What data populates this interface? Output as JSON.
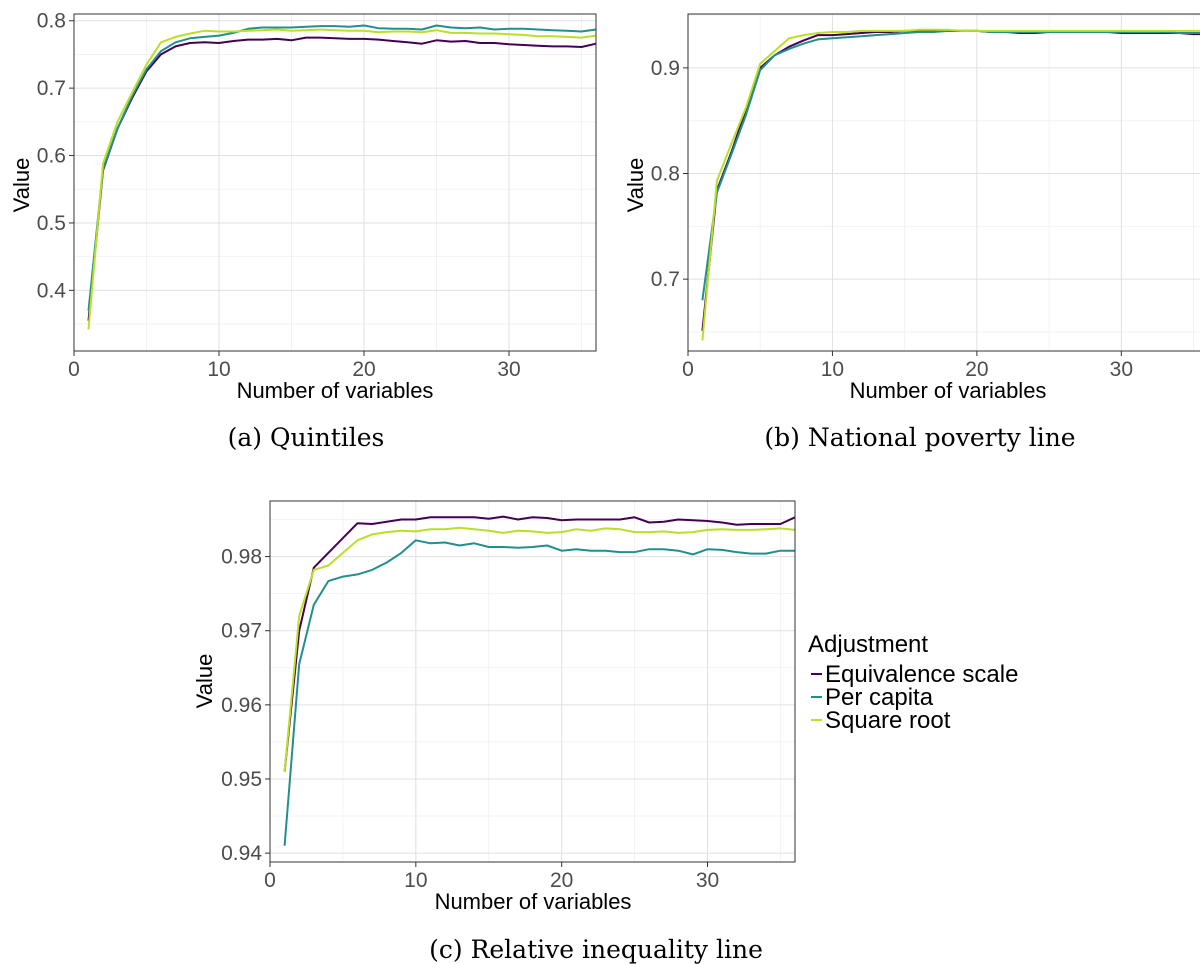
{
  "legend": {
    "title": "Adjustment",
    "items": [
      {
        "label": "Equivalence scale",
        "color": "#440154"
      },
      {
        "label": "Per capita",
        "color": "#21908C"
      },
      {
        "label": "Square root",
        "color": "#BBDF27"
      }
    ]
  },
  "chart_data": [
    {
      "type": "line",
      "caption": "(a) Quintiles",
      "xlabel": "Number of variables",
      "ylabel": "Value",
      "xlim": [
        0,
        36
      ],
      "ylim": [
        0.31,
        0.81
      ],
      "xticks": [
        0,
        10,
        20,
        30
      ],
      "yticks": [
        0.4,
        0.5,
        0.6,
        0.7,
        0.8
      ],
      "ytick_labels": [
        "0.4",
        "0.5",
        "0.6",
        "0.7",
        "0.8"
      ],
      "grid": true,
      "x": [
        1,
        2,
        3,
        4,
        5,
        6,
        7,
        8,
        9,
        10,
        11,
        12,
        13,
        14,
        15,
        16,
        17,
        18,
        19,
        20,
        21,
        22,
        23,
        24,
        25,
        26,
        27,
        28,
        29,
        30,
        31,
        32,
        33,
        34,
        35,
        36
      ],
      "series": [
        {
          "name": "Equivalence scale",
          "color": "#440154",
          "values": [
            0.355,
            0.578,
            0.64,
            0.685,
            0.725,
            0.75,
            0.762,
            0.767,
            0.768,
            0.767,
            0.77,
            0.772,
            0.772,
            0.773,
            0.771,
            0.775,
            0.775,
            0.774,
            0.773,
            0.773,
            0.772,
            0.77,
            0.768,
            0.766,
            0.771,
            0.769,
            0.77,
            0.767,
            0.767,
            0.765,
            0.764,
            0.763,
            0.762,
            0.762,
            0.761,
            0.766
          ]
        },
        {
          "name": "Per capita",
          "color": "#21908C",
          "values": [
            0.37,
            0.58,
            0.64,
            0.688,
            0.728,
            0.755,
            0.768,
            0.774,
            0.776,
            0.778,
            0.782,
            0.788,
            0.79,
            0.79,
            0.79,
            0.791,
            0.792,
            0.792,
            0.791,
            0.793,
            0.789,
            0.788,
            0.788,
            0.787,
            0.793,
            0.79,
            0.789,
            0.79,
            0.787,
            0.788,
            0.788,
            0.787,
            0.786,
            0.785,
            0.784,
            0.787
          ]
        },
        {
          "name": "Square root",
          "color": "#BBDF27",
          "values": [
            0.342,
            0.588,
            0.65,
            0.693,
            0.735,
            0.768,
            0.776,
            0.781,
            0.785,
            0.784,
            0.784,
            0.785,
            0.786,
            0.787,
            0.785,
            0.786,
            0.787,
            0.786,
            0.785,
            0.785,
            0.783,
            0.784,
            0.784,
            0.783,
            0.786,
            0.782,
            0.782,
            0.781,
            0.781,
            0.78,
            0.779,
            0.777,
            0.777,
            0.776,
            0.775,
            0.778
          ]
        }
      ]
    },
    {
      "type": "line",
      "caption": "(b) National poverty line",
      "xlabel": "Number of variables",
      "ylabel": "Value",
      "xlim": [
        0,
        36
      ],
      "ylim": [
        0.632,
        0.951
      ],
      "xticks": [
        0,
        10,
        20,
        30
      ],
      "yticks": [
        0.7,
        0.8,
        0.9
      ],
      "ytick_labels": [
        "0.7",
        "0.8",
        "0.9"
      ],
      "grid": true,
      "x": [
        1,
        2,
        3,
        4,
        5,
        6,
        7,
        8,
        9,
        10,
        11,
        12,
        13,
        14,
        15,
        16,
        17,
        18,
        19,
        20,
        21,
        22,
        23,
        24,
        25,
        26,
        27,
        28,
        29,
        30,
        31,
        32,
        33,
        34,
        35,
        36
      ],
      "series": [
        {
          "name": "Equivalence scale",
          "color": "#440154",
          "values": [
            0.651,
            0.784,
            0.82,
            0.86,
            0.9,
            0.912,
            0.92,
            0.926,
            0.931,
            0.931,
            0.932,
            0.933,
            0.934,
            0.934,
            0.935,
            0.935,
            0.935,
            0.935,
            0.935,
            0.935,
            0.934,
            0.934,
            0.933,
            0.933,
            0.934,
            0.934,
            0.934,
            0.934,
            0.934,
            0.933,
            0.933,
            0.933,
            0.933,
            0.933,
            0.932,
            0.932
          ]
        },
        {
          "name": "Per capita",
          "color": "#21908C",
          "values": [
            0.68,
            0.782,
            0.818,
            0.855,
            0.898,
            0.912,
            0.918,
            0.923,
            0.927,
            0.928,
            0.929,
            0.93,
            0.931,
            0.932,
            0.933,
            0.934,
            0.934,
            0.935,
            0.935,
            0.935,
            0.934,
            0.934,
            0.934,
            0.934,
            0.934,
            0.934,
            0.934,
            0.934,
            0.934,
            0.934,
            0.934,
            0.934,
            0.934,
            0.933,
            0.933,
            0.933
          ]
        },
        {
          "name": "Square root",
          "color": "#BBDF27",
          "values": [
            0.642,
            0.793,
            0.828,
            0.862,
            0.904,
            0.916,
            0.928,
            0.931,
            0.933,
            0.934,
            0.934,
            0.935,
            0.935,
            0.935,
            0.935,
            0.936,
            0.936,
            0.936,
            0.935,
            0.935,
            0.935,
            0.935,
            0.935,
            0.935,
            0.935,
            0.935,
            0.935,
            0.935,
            0.935,
            0.935,
            0.935,
            0.935,
            0.935,
            0.935,
            0.935,
            0.935
          ]
        }
      ]
    },
    {
      "type": "line",
      "caption": "(c) Relative inequality line",
      "xlabel": "Number of variables",
      "ylabel": "Value",
      "xlim": [
        0,
        36
      ],
      "ylim": [
        0.9388,
        0.9875
      ],
      "xticks": [
        0,
        10,
        20,
        30
      ],
      "yticks": [
        0.94,
        0.95,
        0.96,
        0.97,
        0.98
      ],
      "ytick_labels": [
        "0.94",
        "0.95",
        "0.96",
        "0.97",
        "0.98"
      ],
      "grid": true,
      "x": [
        1,
        2,
        3,
        4,
        5,
        6,
        7,
        8,
        9,
        10,
        11,
        12,
        13,
        14,
        15,
        16,
        17,
        18,
        19,
        20,
        21,
        22,
        23,
        24,
        25,
        26,
        27,
        28,
        29,
        30,
        31,
        32,
        33,
        34,
        35,
        36
      ],
      "series": [
        {
          "name": "Equivalence scale",
          "color": "#440154",
          "values": [
            0.951,
            0.97,
            0.9785,
            0.9805,
            0.9825,
            0.9845,
            0.9844,
            0.9847,
            0.985,
            0.985,
            0.9853,
            0.9853,
            0.9853,
            0.9853,
            0.9851,
            0.9854,
            0.985,
            0.9853,
            0.9852,
            0.9849,
            0.985,
            0.985,
            0.985,
            0.985,
            0.9853,
            0.9846,
            0.9847,
            0.985,
            0.9849,
            0.9848,
            0.9846,
            0.9843,
            0.9844,
            0.9844,
            0.9844,
            0.9853
          ]
        },
        {
          "name": "Per capita",
          "color": "#21908C",
          "values": [
            0.941,
            0.9655,
            0.9735,
            0.9767,
            0.9773,
            0.9776,
            0.9782,
            0.9792,
            0.9805,
            0.9822,
            0.9818,
            0.9819,
            0.9815,
            0.9818,
            0.9813,
            0.9813,
            0.9812,
            0.9813,
            0.9815,
            0.9808,
            0.981,
            0.9808,
            0.9808,
            0.9806,
            0.9806,
            0.981,
            0.981,
            0.9808,
            0.9803,
            0.981,
            0.9809,
            0.9806,
            0.9804,
            0.9804,
            0.9808,
            0.9808
          ]
        },
        {
          "name": "Square root",
          "color": "#BBDF27",
          "values": [
            0.951,
            0.972,
            0.9782,
            0.9788,
            0.9805,
            0.9822,
            0.983,
            0.9833,
            0.9835,
            0.9834,
            0.9837,
            0.9837,
            0.9839,
            0.9837,
            0.9835,
            0.9832,
            0.9835,
            0.9834,
            0.9832,
            0.9833,
            0.9837,
            0.9835,
            0.9838,
            0.9837,
            0.9833,
            0.9833,
            0.9834,
            0.9832,
            0.9833,
            0.9836,
            0.9837,
            0.9836,
            0.9836,
            0.9837,
            0.9838,
            0.9836
          ]
        }
      ]
    }
  ]
}
